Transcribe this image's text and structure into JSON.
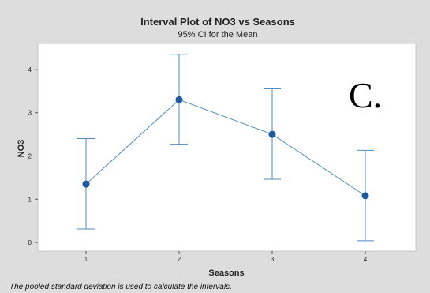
{
  "chart_data": {
    "type": "line",
    "title": "Interval Plot of NO3 vs Seasons",
    "subtitle": "95% CI for the Mean",
    "xlabel": "Seasons",
    "ylabel": "NO3",
    "categories": [
      "1",
      "2",
      "3",
      "4"
    ],
    "series": [
      {
        "values": [
          1.35,
          3.3,
          2.5,
          1.08
        ],
        "ci_lower": [
          0.31,
          2.27,
          1.46,
          0.04
        ],
        "ci_upper": [
          2.4,
          4.35,
          3.55,
          2.13
        ]
      }
    ],
    "ylim": [
      -0.2,
      4.6
    ],
    "yticks": [
      "0",
      "1",
      "2",
      "3",
      "4"
    ],
    "grid": false,
    "annotation": "C.",
    "footnote": "The pooled standard deviation is used to calculate the intervals.",
    "colors": {
      "series": "#4f8ac0",
      "marker": "#1f5aa0",
      "figure_background": "#dddddd",
      "plot_background": "#ffffff"
    }
  }
}
